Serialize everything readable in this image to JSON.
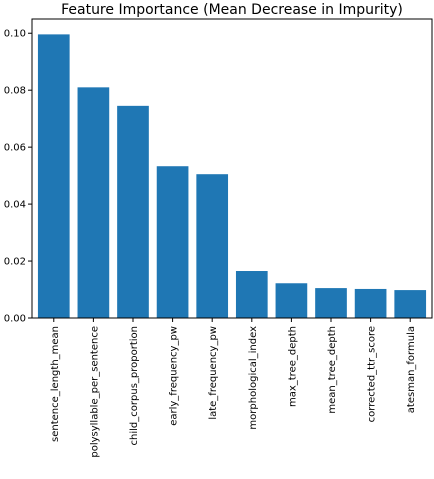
{
  "chart_data": {
    "type": "bar",
    "title": "Feature Importance (Mean Decrease in Impurity)",
    "xlabel": "",
    "ylabel": "",
    "ylim": [
      0,
      0.105
    ],
    "yticks": [
      "0.00",
      "0.02",
      "0.04",
      "0.06",
      "0.08",
      "0.10"
    ],
    "grid": false,
    "bar_color": "#1f77b4",
    "categories": [
      "sentence_length_mean",
      "polysyllable_per_sentence",
      "child_corpus_proportion",
      "early_frequency_pw",
      "late_frequency_pw",
      "morphological_index",
      "max_tree_depth",
      "mean_tree_depth",
      "corrected_ttr_score",
      "atesman_formula"
    ],
    "values": [
      0.0996,
      0.081,
      0.0745,
      0.0533,
      0.0505,
      0.0165,
      0.0122,
      0.0105,
      0.0102,
      0.0098
    ]
  }
}
